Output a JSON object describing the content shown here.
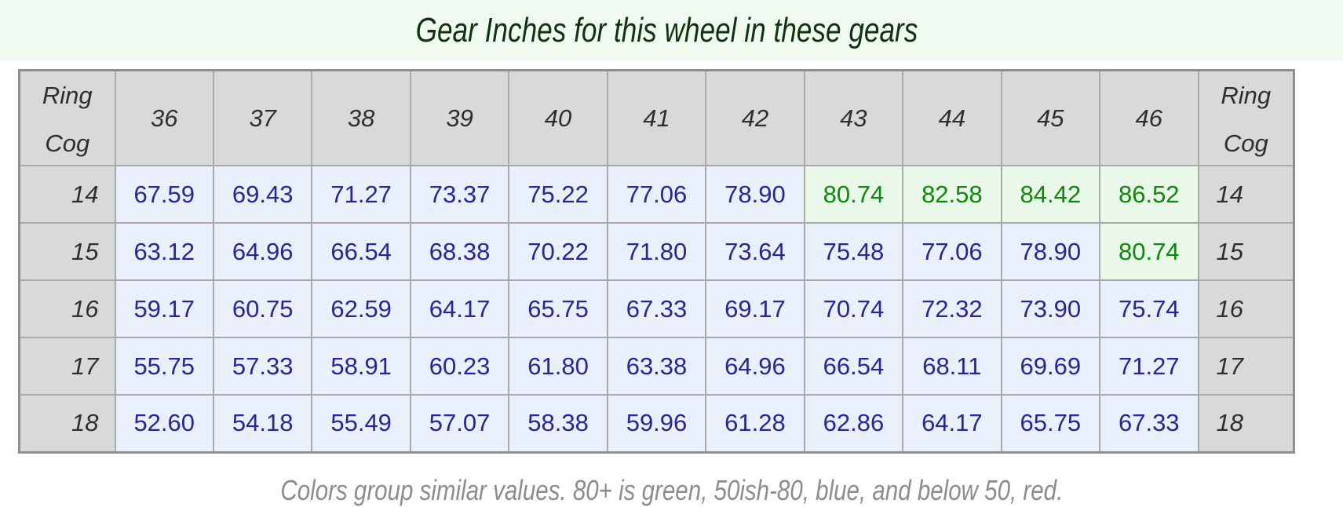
{
  "title": "Gear Inches for this wheel in these gears",
  "legend": "Colors group similar values. 80+ is green, 50ish-80, blue, and below 50, red.",
  "corner": {
    "top": "Ring",
    "bottom": "Cog"
  },
  "chart_data": {
    "type": "table",
    "title": "Gear Inches for this wheel in these gears",
    "column_header_label": "Ring",
    "row_header_label": "Cog",
    "chainrings": [
      "36",
      "37",
      "38",
      "39",
      "40",
      "41",
      "42",
      "43",
      "44",
      "45",
      "46"
    ],
    "rows": [
      {
        "cog": "14",
        "values": [
          "67.59",
          "69.43",
          "71.27",
          "73.37",
          "75.22",
          "77.06",
          "78.90",
          "80.74",
          "82.58",
          "84.42",
          "86.52"
        ]
      },
      {
        "cog": "15",
        "values": [
          "63.12",
          "64.96",
          "66.54",
          "68.38",
          "70.22",
          "71.80",
          "73.64",
          "75.48",
          "77.06",
          "78.90",
          "80.74"
        ]
      },
      {
        "cog": "16",
        "values": [
          "59.17",
          "60.75",
          "62.59",
          "64.17",
          "65.75",
          "67.33",
          "69.17",
          "70.74",
          "72.32",
          "73.90",
          "75.74"
        ]
      },
      {
        "cog": "17",
        "values": [
          "55.75",
          "57.33",
          "58.91",
          "60.23",
          "61.80",
          "63.38",
          "64.96",
          "66.54",
          "68.11",
          "69.69",
          "71.27"
        ]
      },
      {
        "cog": "18",
        "values": [
          "52.60",
          "54.18",
          "55.49",
          "57.07",
          "58.38",
          "59.96",
          "61.28",
          "62.86",
          "64.17",
          "65.75",
          "67.33"
        ]
      }
    ],
    "color_rule": {
      "green_min": 80,
      "blue_min": 50
    }
  },
  "colors": {
    "band_bg": "#f0faf0",
    "title_text": "#0e330e",
    "header_bg": "#d9d9d9",
    "header_text": "#2e2e2e",
    "blue_bg": "#eaf0fb",
    "blue_text": "#25259d",
    "green_bg": "#e9f8e9",
    "green_text": "#0b8b0b",
    "red_bg": "#fbeaea",
    "red_text": "#b22222",
    "grid_border": "#a9a9a9",
    "outer_border": "#8f8f8f",
    "footer_text": "#8c8c8c"
  }
}
